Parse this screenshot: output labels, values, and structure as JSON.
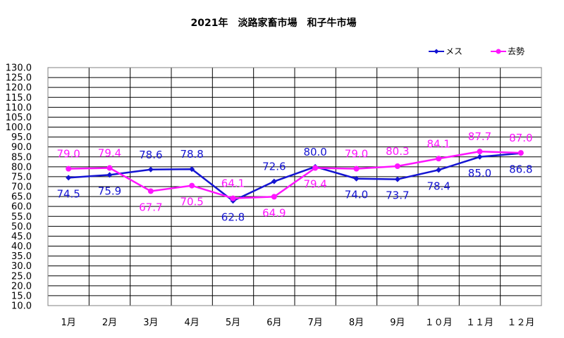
{
  "chart_data": {
    "type": "line",
    "title": "2021年　淡路家畜市場　和子牛市場",
    "categories": [
      "1月",
      "2月",
      "3月",
      "4月",
      "5月",
      "6月",
      "7月",
      "8月",
      "9月",
      "１０月",
      "１１月",
      "１２月"
    ],
    "ylim": [
      10.0,
      130.0
    ],
    "y_step": 5.0,
    "y_tick_labels": [
      "10.0",
      "15.0",
      "20.0",
      "25.0",
      "30.0",
      "35.0",
      "40.0",
      "45.0",
      "50.0",
      "55.0",
      "60.0",
      "65.0",
      "70.0",
      "75.0",
      "80.0",
      "85.0",
      "90.0",
      "95.0",
      "100.0",
      "105.0",
      "110.0",
      "115.0",
      "120.0",
      "125.0",
      "130.0"
    ],
    "grid": true,
    "legend_position": "top-right",
    "series": [
      {
        "name": "メス",
        "color": "#1414d2",
        "marker": "diamond",
        "values": [
          74.5,
          75.9,
          78.6,
          78.8,
          62.8,
          72.6,
          80.0,
          74.0,
          73.7,
          78.4,
          85.0,
          86.8
        ],
        "labels": [
          "74.5",
          "75.9",
          "78.6",
          "78.8",
          "62.8",
          "72.6",
          "80.0",
          "74.0",
          "73.7",
          "78.4",
          "85.0",
          "86.8"
        ]
      },
      {
        "name": "去勢",
        "color": "#ff14ff",
        "marker": "circle",
        "values": [
          79.0,
          79.4,
          67.7,
          70.5,
          64.1,
          64.9,
          79.4,
          79.0,
          80.3,
          84.1,
          87.7,
          87.0
        ],
        "labels": [
          "79.0",
          "79.4",
          "67.7",
          "70.5",
          "64.1",
          "64.9",
          "79.4",
          "79.0",
          "80.3",
          "84.1",
          "87.7",
          "87.0"
        ]
      }
    ]
  }
}
